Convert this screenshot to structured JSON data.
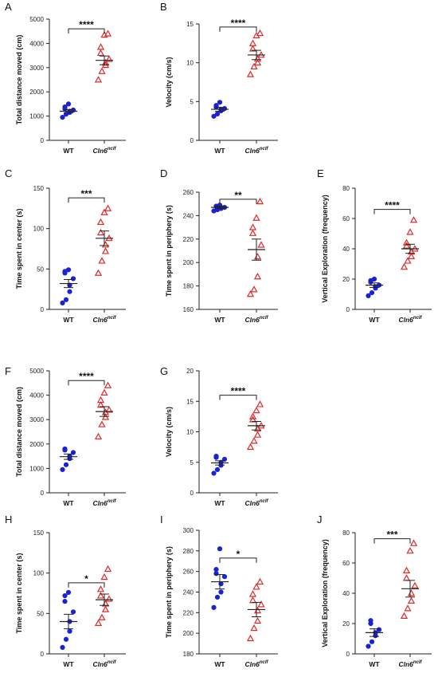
{
  "chart_data": [
    {
      "panel": "A",
      "type": "scatter",
      "ylabel": "Total distance moved (cm)",
      "ylim": [
        0,
        5000
      ],
      "yticks": [
        0,
        1000,
        2000,
        3000,
        4000,
        5000
      ],
      "categories": [
        "WT",
        "Cln6^nclf"
      ],
      "significance": "****",
      "bracket_y": 4600,
      "groups": [
        {
          "name": "WT",
          "marker": "circle",
          "color": "#1a22d6",
          "mean": 1200,
          "sem": 70,
          "points": [
            950,
            1080,
            1150,
            1200,
            1250,
            1300,
            1380,
            1500
          ]
        },
        {
          "name": "Cln6^nclf",
          "marker": "triangle",
          "color": "#e02a2a",
          "mean": 3300,
          "sem": 180,
          "points": [
            2500,
            2850,
            3100,
            3200,
            3350,
            3600,
            3850,
            4350,
            4400
          ]
        }
      ]
    },
    {
      "panel": "B",
      "type": "scatter",
      "ylabel": "Velocity (cm/s)",
      "ylim": [
        0,
        15
      ],
      "yticks": [
        0,
        5,
        10,
        15
      ],
      "categories": [
        "WT",
        "Cln6^nclf"
      ],
      "significance": "****",
      "bracket_y": 14.6,
      "groups": [
        {
          "name": "WT",
          "marker": "circle",
          "color": "#1a22d6",
          "mean": 4.0,
          "sem": 0.25,
          "points": [
            3.1,
            3.4,
            3.8,
            4.0,
            4.1,
            4.3,
            4.5,
            4.9
          ]
        },
        {
          "name": "Cln6^nclf",
          "marker": "triangle",
          "color": "#e02a2a",
          "mean": 11.0,
          "sem": 0.6,
          "points": [
            8.5,
            9.5,
            10.0,
            10.5,
            11.0,
            11.8,
            12.5,
            13.5,
            13.8
          ]
        }
      ]
    },
    {
      "panel": "C",
      "type": "scatter",
      "ylabel": "Time spent in center (s)",
      "ylim": [
        0,
        150
      ],
      "yticks": [
        0,
        50,
        100,
        150
      ],
      "categories": [
        "WT",
        "Cln6^nclf"
      ],
      "significance": "***",
      "bracket_y": 138,
      "groups": [
        {
          "name": "WT",
          "marker": "circle",
          "color": "#1a22d6",
          "mean": 32,
          "sem": 5,
          "points": [
            8,
            12,
            22,
            30,
            38,
            45,
            47,
            49
          ]
        },
        {
          "name": "Cln6^nclf",
          "marker": "triangle",
          "color": "#e02a2a",
          "mean": 88,
          "sem": 9,
          "points": [
            45,
            60,
            72,
            80,
            88,
            95,
            108,
            120,
            125
          ]
        }
      ]
    },
    {
      "panel": "D",
      "type": "scatter",
      "ylabel": "Time spent in periphery (s)",
      "ylim": [
        160,
        260
      ],
      "yticks": [
        160,
        180,
        200,
        220,
        240,
        260
      ],
      "categories": [
        "WT",
        "Cln6^nclf"
      ],
      "significance": "**",
      "bracket_y": 254,
      "groups": [
        {
          "name": "WT",
          "marker": "circle",
          "color": "#1a22d6",
          "mean": 247,
          "sem": 1,
          "points": [
            244,
            245,
            246,
            247,
            247,
            248,
            248,
            249
          ]
        },
        {
          "name": "Cln6^nclf",
          "marker": "triangle",
          "color": "#e02a2a",
          "mean": 211,
          "sem": 9,
          "points": [
            173,
            177,
            188,
            205,
            215,
            225,
            230,
            238,
            252
          ]
        }
      ]
    },
    {
      "panel": "E",
      "type": "scatter",
      "ylabel": "Vertical Exploration (frequency)",
      "ylim": [
        0,
        80
      ],
      "yticks": [
        0,
        20,
        40,
        60,
        80
      ],
      "categories": [
        "WT",
        "Cln6^nclf"
      ],
      "significance": "****",
      "bracket_y": 66,
      "groups": [
        {
          "name": "WT",
          "marker": "circle",
          "color": "#1a22d6",
          "mean": 16,
          "sem": 1.5,
          "points": [
            9,
            11,
            14,
            15,
            16,
            18,
            19,
            20
          ]
        },
        {
          "name": "Cln6^nclf",
          "marker": "triangle",
          "color": "#e02a2a",
          "mean": 40,
          "sem": 3,
          "points": [
            28,
            32,
            35,
            38,
            40,
            42,
            44,
            51,
            59
          ]
        }
      ]
    },
    {
      "panel": "F",
      "type": "scatter",
      "ylabel": "Total distance moved (cm)",
      "ylim": [
        0,
        5000
      ],
      "yticks": [
        0,
        1000,
        2000,
        3000,
        4000,
        5000
      ],
      "categories": [
        "WT",
        "Cln6^nclf"
      ],
      "significance": "****",
      "bracket_y": 4600,
      "groups": [
        {
          "name": "WT",
          "marker": "circle",
          "color": "#1a22d6",
          "mean": 1480,
          "sem": 110,
          "points": [
            950,
            1150,
            1400,
            1500,
            1650,
            1750,
            1800
          ]
        },
        {
          "name": "Cln6^nclf",
          "marker": "triangle",
          "color": "#e02a2a",
          "mean": 3330,
          "sem": 200,
          "points": [
            2300,
            2800,
            3100,
            3300,
            3400,
            3600,
            3800,
            4100,
            4400
          ]
        }
      ]
    },
    {
      "panel": "G",
      "type": "scatter",
      "ylabel": "Velocity (cm/s)",
      "ylim": [
        0,
        20
      ],
      "yticks": [
        0,
        5,
        10,
        15,
        20
      ],
      "categories": [
        "WT",
        "Cln6^nclf"
      ],
      "significance": "****",
      "bracket_y": 16,
      "groups": [
        {
          "name": "WT",
          "marker": "circle",
          "color": "#1a22d6",
          "mean": 4.9,
          "sem": 0.35,
          "points": [
            3.2,
            3.8,
            4.5,
            5.0,
            5.5,
            5.8,
            6.0
          ]
        },
        {
          "name": "Cln6^nclf",
          "marker": "triangle",
          "color": "#e02a2a",
          "mean": 11.0,
          "sem": 0.7,
          "points": [
            7.5,
            8.5,
            9.5,
            10.5,
            11.0,
            12.0,
            12.5,
            13.5,
            14.5
          ]
        }
      ]
    },
    {
      "panel": "H",
      "type": "scatter",
      "ylabel": "Time spent in center (s)",
      "ylim": [
        0,
        150
      ],
      "yticks": [
        0,
        50,
        100,
        150
      ],
      "categories": [
        "WT",
        "Cln6^nclf"
      ],
      "significance": "*",
      "bracket_y": 88,
      "groups": [
        {
          "name": "WT",
          "marker": "circle",
          "color": "#1a22d6",
          "mean": 40,
          "sem": 9,
          "points": [
            8,
            18,
            28,
            40,
            52,
            65,
            72,
            76
          ]
        },
        {
          "name": "Cln6^nclf",
          "marker": "triangle",
          "color": "#e02a2a",
          "mean": 67,
          "sem": 7,
          "points": [
            38,
            45,
            55,
            62,
            68,
            72,
            80,
            95,
            105
          ]
        }
      ]
    },
    {
      "panel": "I",
      "type": "scatter",
      "ylabel": "Time spent in periphery (s)",
      "ylim": [
        180,
        300
      ],
      "yticks": [
        180,
        200,
        220,
        240,
        260,
        280,
        300
      ],
      "categories": [
        "WT",
        "Cln6^nclf"
      ],
      "significance": "*",
      "bracket_y": 273,
      "groups": [
        {
          "name": "WT",
          "marker": "circle",
          "color": "#1a22d6",
          "mean": 250,
          "sem": 7,
          "points": [
            225,
            235,
            240,
            248,
            255,
            258,
            262,
            282
          ]
        },
        {
          "name": "Cln6^nclf",
          "marker": "triangle",
          "color": "#e02a2a",
          "mean": 223,
          "sem": 7,
          "points": [
            195,
            205,
            212,
            222,
            228,
            232,
            238,
            245,
            250
          ]
        }
      ]
    },
    {
      "panel": "J",
      "type": "scatter",
      "ylabel": "Vertical Exploration (frequency)",
      "ylim": [
        0,
        80
      ],
      "yticks": [
        0,
        20,
        40,
        60,
        80
      ],
      "categories": [
        "WT",
        "Cln6^nclf"
      ],
      "significance": "***",
      "bracket_y": 76,
      "groups": [
        {
          "name": "WT",
          "marker": "circle",
          "color": "#1a22d6",
          "mean": 14,
          "sem": 2.5,
          "points": [
            5,
            8,
            12,
            14,
            16,
            20,
            22
          ]
        },
        {
          "name": "Cln6^nclf",
          "marker": "triangle",
          "color": "#e02a2a",
          "mean": 43,
          "sem": 5.5,
          "points": [
            25,
            30,
            35,
            40,
            45,
            50,
            55,
            68,
            73
          ]
        }
      ]
    }
  ]
}
